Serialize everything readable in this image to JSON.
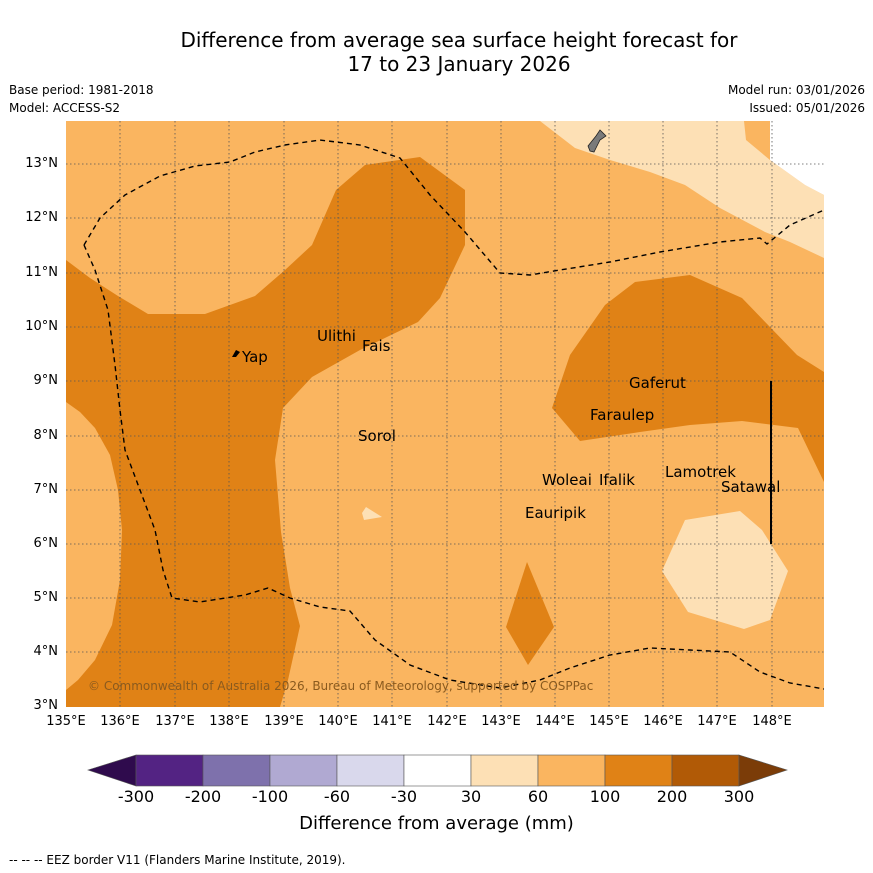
{
  "title": {
    "line1": "Difference from average sea surface height forecast for",
    "line2": "17 to 23 January 2026"
  },
  "meta": {
    "base_period": "Base period: 1981-2018",
    "model": "Model: ACCESS-S2",
    "model_run": "Model run: 03/01/2026",
    "issued": "Issued: 05/01/2026"
  },
  "axes": {
    "lon_labels": [
      "135°E",
      "136°E",
      "137°E",
      "138°E",
      "139°E",
      "140°E",
      "141°E",
      "142°E",
      "143°E",
      "144°E",
      "145°E",
      "146°E",
      "147°E",
      "148°E"
    ],
    "lat_labels": [
      "13°N",
      "12°N",
      "11°N",
      "10°N",
      "9°N",
      "8°N",
      "7°N",
      "6°N",
      "5°N",
      "4°N",
      "3°N"
    ]
  },
  "places": {
    "yap": "Yap",
    "ulithi": "Ulithi",
    "fais": "Fais",
    "sorol": "Sorol",
    "gaferut": "Gaferut",
    "faraulep": "Faraulep",
    "woleai": "Woleai",
    "ifalik": "Ifalik",
    "lamotrek": "Lamotrek",
    "satawal": "Satawal",
    "eauripik": "Eauripik"
  },
  "copyright": "© Commonwealth of Australia 2026, Bureau of Meteorology, supported by COSPPac",
  "colorbar": {
    "title": "Difference from average (mm)",
    "labels": [
      "-300",
      "-200",
      "-100",
      "-60",
      "-30",
      "30",
      "60",
      "100",
      "200",
      "300"
    ],
    "colors": {
      "lt_m300": "#2f0b4d",
      "m300_m200": "#532383",
      "m200_m100": "#7e71ac",
      "m100_m60": "#b0a9d2",
      "m60_m30": "#d9d8ec",
      "m30_30": "#ffffff",
      "30_60": "#fde0b5",
      "60_100": "#fab560",
      "100_200": "#e08216",
      "200_300": "#b15a06",
      "gt_300": "#7b3c08"
    }
  },
  "footer": "--  --  -- EEZ border V11 (Flanders Marine Institute, 2019)."
}
